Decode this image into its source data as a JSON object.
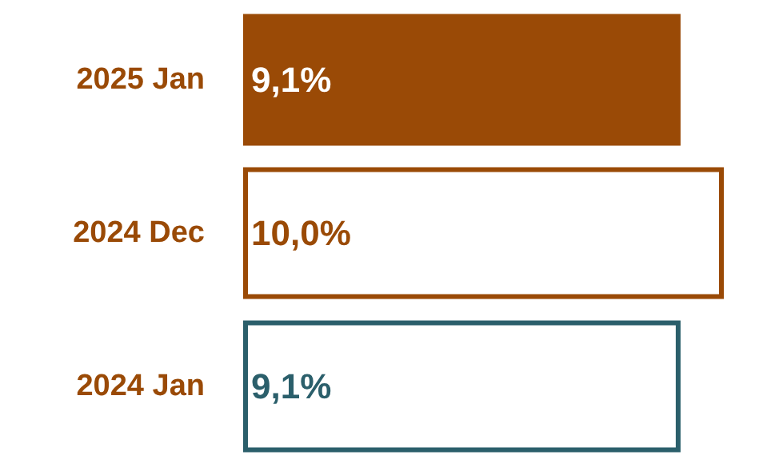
{
  "chart_data": {
    "type": "bar",
    "orientation": "horizontal",
    "categories": [
      "2025 Jan",
      "2024 Dec",
      "2024 Jan"
    ],
    "series": [
      {
        "color": "#9a4a06",
        "values": [
          9.1,
          null,
          null
        ],
        "value_labels": [
          "9,1%",
          null,
          null
        ]
      },
      {
        "colors": [
          null,
          "#9a4a06",
          "#2b5f6b"
        ],
        "values": [
          null,
          10.0,
          9.1
        ],
        "value_labels": [
          null,
          "10,0%",
          "9,1%"
        ]
      }
    ],
    "tick_labels": "y"
  }
}
